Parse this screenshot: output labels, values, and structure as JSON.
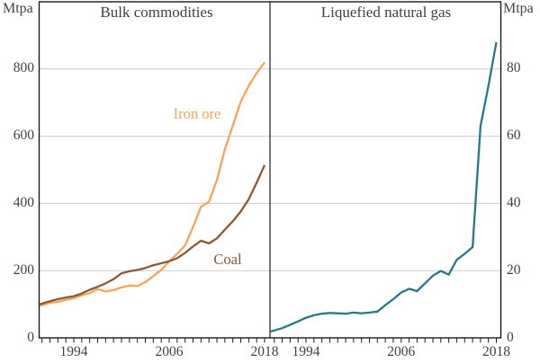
{
  "chart_data": {
    "type": "line",
    "unit_label": "Mtpa",
    "years": [
      1990,
      1991,
      1992,
      1993,
      1994,
      1995,
      1996,
      1997,
      1998,
      1999,
      2000,
      2001,
      2002,
      2003,
      2004,
      2005,
      2006,
      2007,
      2008,
      2009,
      2010,
      2011,
      2012,
      2013,
      2014,
      2015,
      2016,
      2017,
      2018
    ],
    "x_tick_years": [
      1994,
      2006,
      2018
    ],
    "x_tick_labels": [
      "1994",
      "2006",
      "2018"
    ],
    "colors": {
      "text": "#3b4249",
      "gridline": "#cbcbcb",
      "frame": "#1a1a1a"
    },
    "layout": {
      "grid": "horizontal",
      "tick_marks": "yearly, outside bottom axis",
      "legend": "inline labels"
    },
    "panels": [
      {
        "title": "Bulk commodities",
        "side": "left",
        "ylim": [
          0,
          1000
        ],
        "y_tick_values": [
          0,
          200,
          400,
          600,
          800
        ],
        "y_tick_labels": [
          "0",
          "200",
          "400",
          "600",
          "800"
        ],
        "series": [
          {
            "name": "Iron ore",
            "color": "#f6a455",
            "values": [
              97,
              104,
              107,
              113,
              118,
              127,
              133,
              145,
              138,
              142,
              150,
              156,
              154,
              166,
              184,
              202,
              228,
              250,
              275,
              330,
              390,
              405,
              470,
              560,
              632,
              703,
              750,
              788,
              820
            ]
          },
          {
            "name": "Coal",
            "color": "#895a38",
            "values": [
              102,
              109,
              115,
              120,
              124,
              132,
              143,
              152,
              162,
              175,
              192,
              198,
              202,
              208,
              216,
              222,
              228,
              237,
              253,
              272,
              289,
              281,
              296,
              322,
              347,
              376,
              412,
              462,
              514
            ]
          }
        ]
      },
      {
        "title": "Liquefied natural gas",
        "side": "right",
        "ylim": [
          0,
          100
        ],
        "y_tick_values": [
          0,
          20,
          40,
          60,
          80
        ],
        "y_tick_labels": [
          "0",
          "20",
          "40",
          "60",
          "80"
        ],
        "series": [
          {
            "name": "Liquefied natural gas",
            "color": "#26798a",
            "values": [
              2.2,
              2.9,
              3.9,
              4.9,
              6.0,
              6.7,
              7.2,
              7.4,
              7.3,
              7.2,
              7.5,
              7.3,
              7.5,
              7.8,
              9.7,
              11.5,
              13.5,
              14.6,
              13.9,
              16.2,
              18.5,
              19.9,
              18.8,
              23.2,
              25.0,
              27.0,
              63.0,
              75.0,
              88.0
            ]
          }
        ]
      }
    ]
  }
}
